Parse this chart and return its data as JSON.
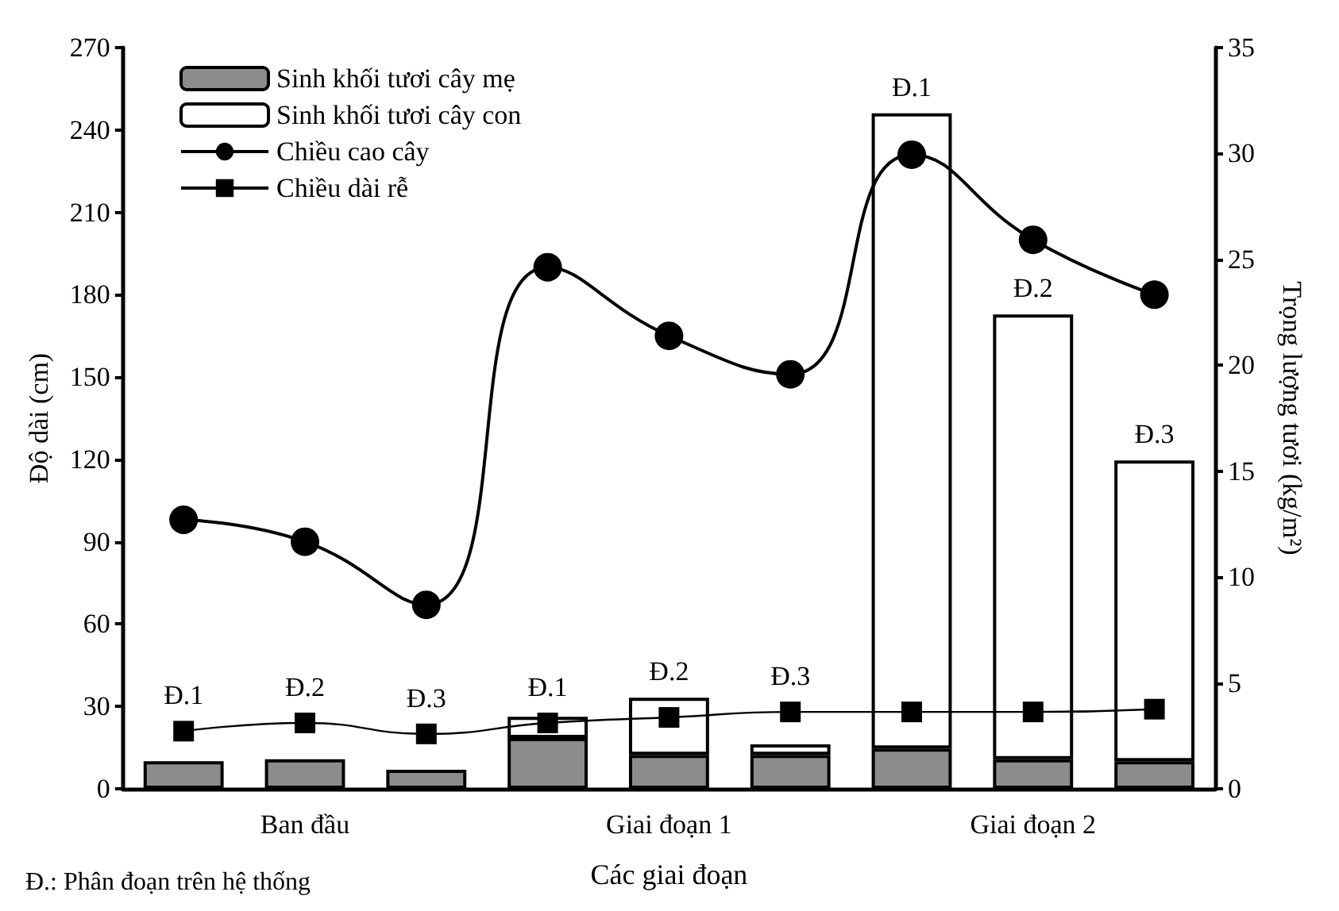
{
  "chart_data": {
    "type": "bar",
    "stacked": true,
    "xlabel": "Các giai đoạn",
    "ylabel": "Độ dài (cm)",
    "y2label": "Trọng lượng tươi (kg/m²)",
    "categories": [
      null,
      "Ban đầu",
      null,
      null,
      "Giai đoạn 1",
      null,
      null,
      "Giai đoạn 2",
      null
    ],
    "series": [
      {
        "name": "Sinh khối tươi cây mẹ",
        "axis": "y2",
        "color": "#8c8c8c",
        "values": [
          1.3,
          1.4,
          0.9,
          2.4,
          1.6,
          1.6,
          1.9,
          1.4,
          1.3
        ]
      },
      {
        "name": "Sinh khối tươi cây con",
        "axis": "y2",
        "color": "#ffffff",
        "values": [
          null,
          null,
          null,
          1.0,
          2.7,
          0.5,
          30.0,
          21.0,
          14.2
        ]
      },
      {
        "name": "Chiều cao cây",
        "type": "line",
        "color": "#000000",
        "marker": "circle",
        "values": [
          98,
          90,
          67,
          190,
          165,
          151,
          231,
          200,
          180
        ]
      },
      {
        "name": "Chiều dài rễ",
        "type": "line",
        "color": "#000000",
        "marker": "square",
        "values": [
          21,
          24,
          20,
          24,
          26,
          28,
          28,
          28,
          29
        ]
      }
    ],
    "ylim": [
      0,
      270
    ],
    "yticks": [
      0,
      30,
      60,
      90,
      120,
      150,
      180,
      210,
      240,
      270
    ],
    "y2lim": [
      0,
      35
    ],
    "y2ticks": [
      0,
      5,
      10,
      15,
      20,
      25,
      30,
      35
    ],
    "grid": false,
    "legend": "top left",
    "line_style": "solid",
    "annotations": [
      "Đ.1",
      "Đ.2",
      "Đ.3",
      "Đ.1",
      "Đ.2",
      "Đ.3",
      "Đ.1",
      "Đ.2",
      "Đ.3",
      "Đ.: Phân đoạn trên hệ thống"
    ]
  }
}
